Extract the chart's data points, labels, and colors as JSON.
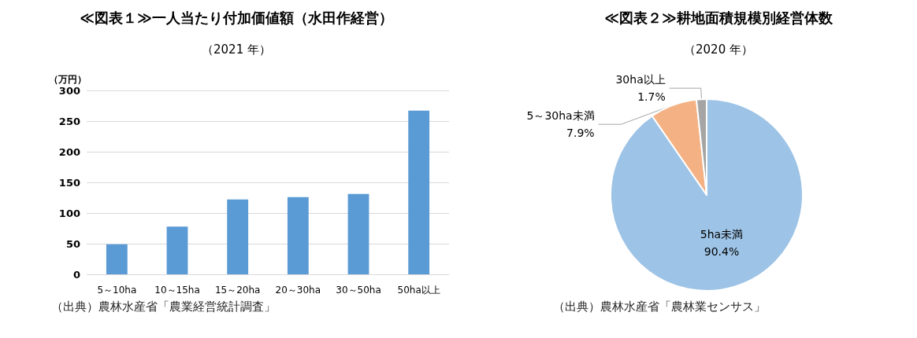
{
  "chart_data": [
    {
      "type": "bar",
      "title": "≪図表１≫一人当たり付加価値額（水田作経営）",
      "subtitle": "（2021 年）",
      "ylabel": "（万円）",
      "categories": [
        "5～10ha",
        "10～15ha",
        "15～20ha",
        "20～30ha",
        "30～50ha",
        "50ha以上"
      ],
      "values": [
        49,
        78,
        122,
        126,
        131,
        267
      ],
      "color": "#5b9bd5",
      "ylim": [
        0,
        300
      ],
      "yticks": [
        0,
        50,
        100,
        150,
        200,
        250,
        300
      ],
      "grid": "y",
      "legend": false,
      "annotations": [
        "（出典）農林水産省「農業経営統計調査」"
      ]
    },
    {
      "type": "pie",
      "title": "≪図表２≫耕地面積規模別経営体数",
      "subtitle": "（2020 年）",
      "categories": [
        "5ha未満",
        "5～30ha未満",
        "30ha以上"
      ],
      "values": [
        90.4,
        7.9,
        1.7
      ],
      "colors": [
        "#9dc3e6",
        "#f4b183",
        "#a5a5a5"
      ],
      "value_labels": [
        "90.4%",
        "7.9%",
        "1.7%"
      ],
      "legend": false,
      "annotations": [
        "（出典）農林水産省「農林業センサス」"
      ]
    }
  ]
}
